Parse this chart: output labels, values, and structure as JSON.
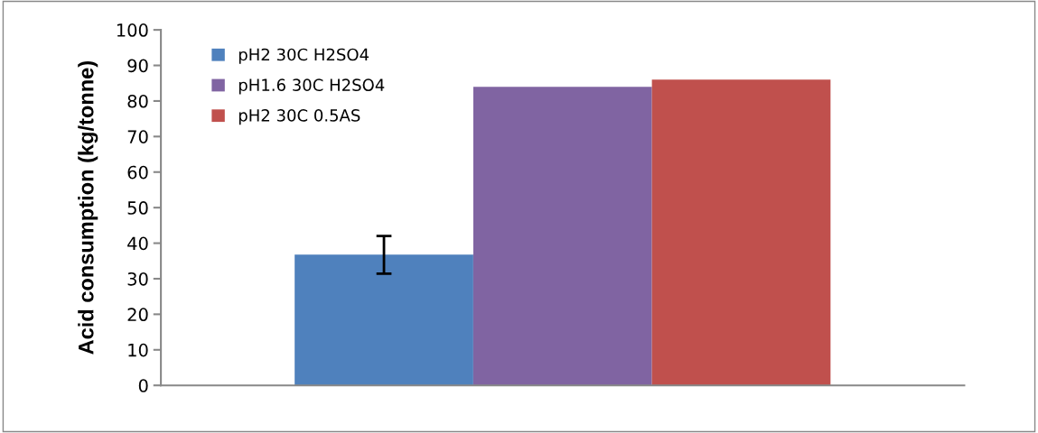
{
  "chart_data": {
    "type": "bar",
    "ylabel": "Acid consumption (kg/tonne)",
    "categories": [
      null
    ],
    "series": [
      {
        "name": "pH2 30C H2SO4",
        "color": "#4f81bd",
        "values": [
          36.8
        ],
        "errors": [
          [
            31.4,
            42.0
          ]
        ]
      },
      {
        "name": "pH1.6 30C H2SO4",
        "color": "#8064a2",
        "values": [
          84.0
        ]
      },
      {
        "name": "pH2 30C 0.5AS",
        "color": "#c0504d",
        "values": [
          86.0
        ]
      }
    ],
    "ylim": [
      0,
      100
    ],
    "yticks": [
      0,
      10,
      20,
      30,
      40,
      50,
      60,
      70,
      80,
      90,
      100
    ],
    "grid": false,
    "legend": "top left"
  }
}
